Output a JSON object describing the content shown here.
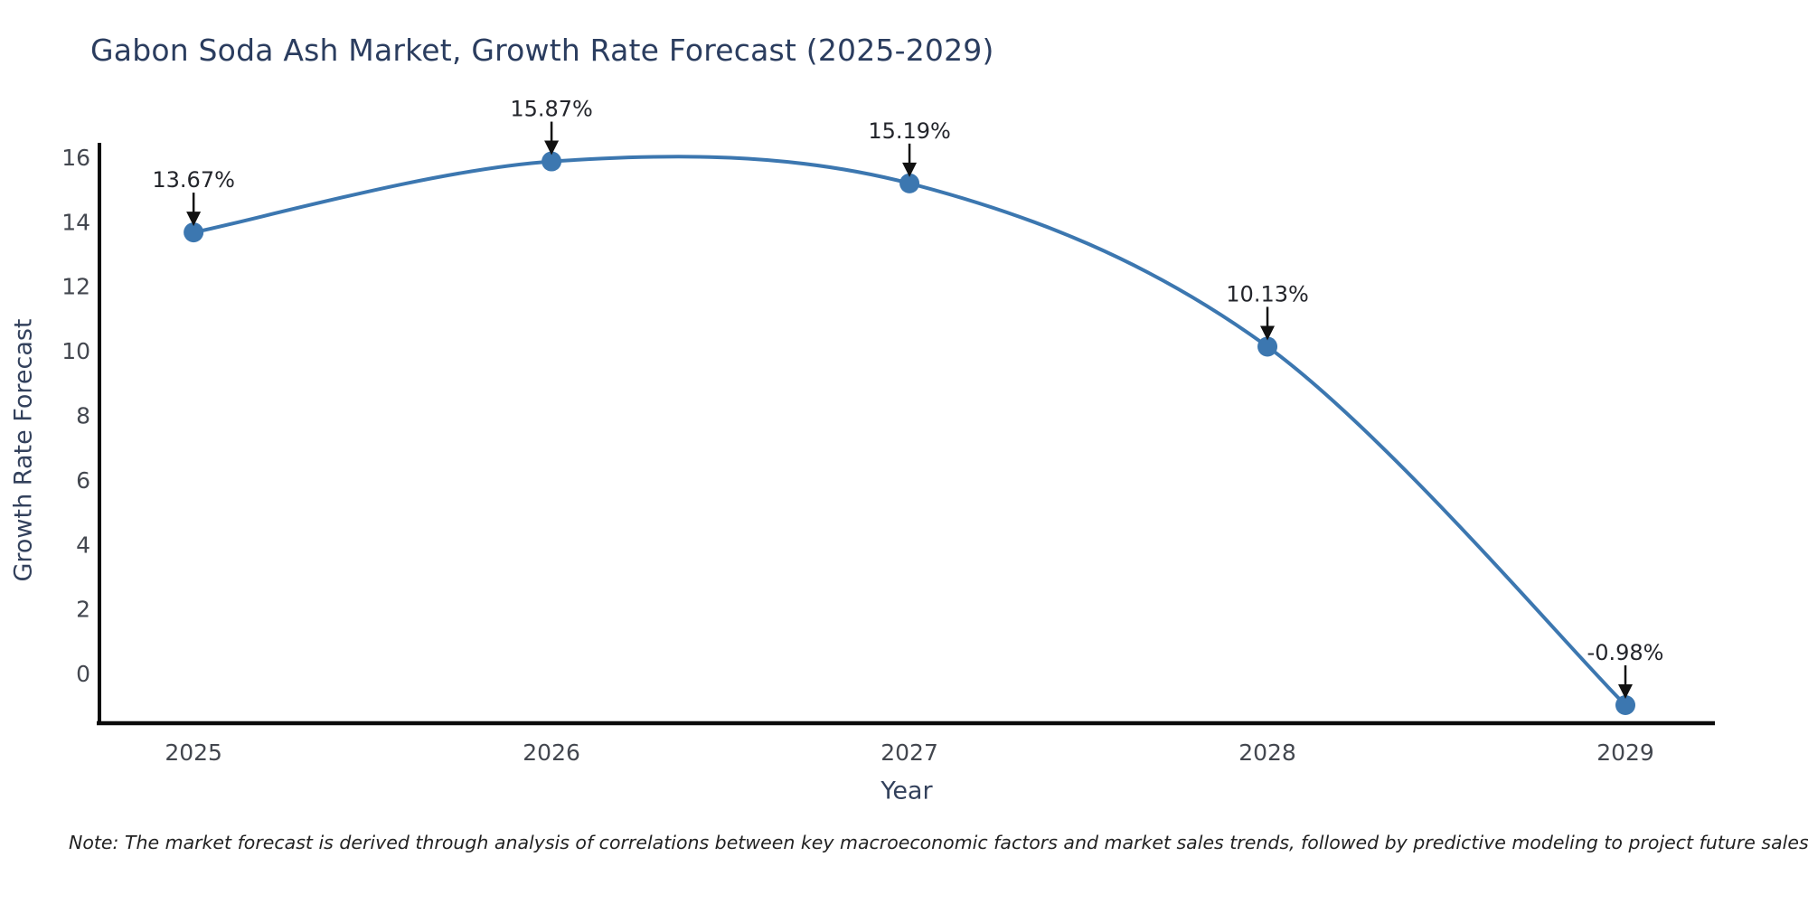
{
  "chart_data": {
    "type": "line",
    "title": "Gabon Soda Ash Market, Growth Rate Forecast (2025-2029)",
    "xlabel": "Year",
    "ylabel": "Growth Rate Forecast",
    "x": [
      2025,
      2026,
      2027,
      2028,
      2029
    ],
    "values": [
      13.67,
      15.87,
      15.19,
      10.13,
      -0.98
    ],
    "point_labels": [
      "13.67%",
      "15.87%",
      "15.19%",
      "10.13%",
      "-0.98%"
    ],
    "y_ticks": [
      0,
      2,
      4,
      6,
      8,
      10,
      12,
      14,
      16
    ],
    "xlim": [
      2024.737,
      2029.25
    ],
    "ylim": [
      -1.54,
      16.39
    ],
    "grid": false,
    "legend": "none",
    "line_shape": "spline",
    "note": "Note: The market forecast is derived through analysis of correlations between key macroeconomic factors and market sales trends, followed by predictive modeling to project future sales",
    "colors": {
      "line": "#3c77b0",
      "marker": "#3c77b0",
      "annotation_text": "#23252b",
      "arrow": "#111111",
      "title": "#2b3d5f",
      "axis_title": "#33415c",
      "tick_label": "#43474f",
      "axis_line": "#0a0a0a",
      "note_text": "#222222",
      "background": "#ffffff"
    }
  }
}
